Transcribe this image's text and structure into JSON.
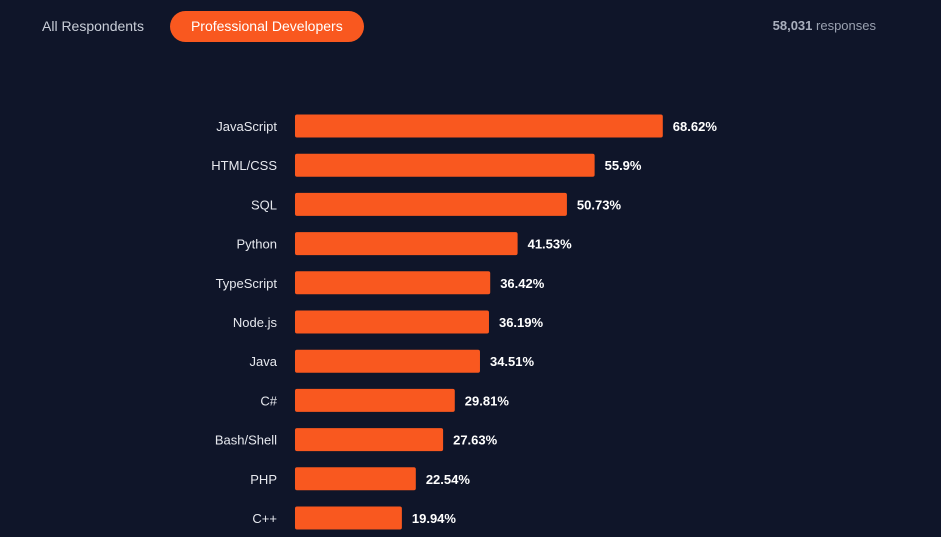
{
  "tabs": [
    {
      "label": "All Respondents",
      "active": false
    },
    {
      "label": "Professional Developers",
      "active": true
    }
  ],
  "responses": {
    "count": "58,031",
    "label": "responses"
  },
  "colors": {
    "background": "#0f1529",
    "bar": "#f9581f",
    "active_tab": "#f9581f"
  },
  "chart_data": {
    "type": "bar",
    "orientation": "horizontal",
    "categories": [
      "JavaScript",
      "HTML/CSS",
      "SQL",
      "Python",
      "TypeScript",
      "Node.js",
      "Java",
      "C#",
      "Bash/Shell",
      "PHP",
      "C++"
    ],
    "values": [
      68.62,
      55.9,
      50.73,
      41.53,
      36.42,
      36.19,
      34.51,
      29.81,
      27.63,
      22.54,
      19.94
    ],
    "value_labels": [
      "68.62%",
      "55.9%",
      "50.73%",
      "41.53%",
      "36.42%",
      "36.19%",
      "34.51%",
      "29.81%",
      "27.63%",
      "22.54%",
      "19.94%"
    ],
    "unit": "%",
    "grid": false,
    "legend": "none"
  }
}
